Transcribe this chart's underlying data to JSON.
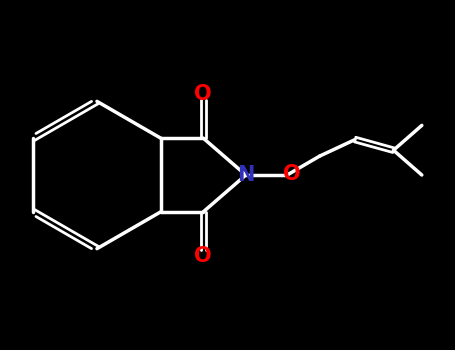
{
  "background_color": "#000000",
  "bond_color": "#ffffff",
  "atom_colors": {
    "O": "#ff0000",
    "N": "#3030bb",
    "C": "#ffffff"
  },
  "title": "",
  "figsize": [
    4.55,
    3.5
  ],
  "dpi": 100,
  "lw_single": 2.5,
  "lw_double": 2.0,
  "dbl_sep": 0.09,
  "label_fontsize": 15
}
